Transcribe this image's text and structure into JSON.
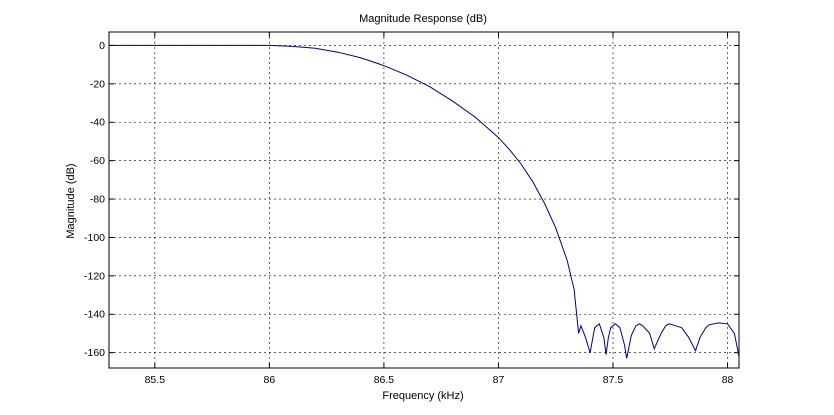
{
  "chart_data": {
    "type": "line",
    "title": "Magnitude Response (dB)",
    "xlabel": "Frequency (kHz)",
    "ylabel": "Magnitude (dB)",
    "xlim": [
      85.3,
      88.05
    ],
    "ylim": [
      -168,
      7
    ],
    "xticks": [
      85.5,
      86,
      86.5,
      87,
      87.5,
      88
    ],
    "xtick_labels": [
      "85.5",
      "86",
      "86.5",
      "87",
      "87.5",
      "88"
    ],
    "yticks": [
      0,
      -20,
      -40,
      -60,
      -80,
      -100,
      -120,
      -140,
      -160
    ],
    "ytick_labels": [
      "0",
      "-20",
      "-40",
      "-60",
      "-80",
      "-100",
      "-120",
      "-140",
      "-160"
    ],
    "grid": true,
    "grid_style": "dotted",
    "line_color": "#00008b",
    "series": [
      {
        "x": [
          85.3,
          85.6,
          85.9,
          86.0,
          86.1,
          86.2,
          86.3,
          86.4,
          86.5,
          86.6,
          86.7,
          86.8,
          86.9,
          87.0,
          87.05,
          87.1,
          87.15,
          87.2,
          87.25,
          87.3,
          87.33,
          87.35,
          87.36,
          87.38,
          87.4,
          87.42,
          87.44,
          87.46,
          87.47,
          87.48,
          87.49,
          87.51,
          87.53,
          87.55,
          87.56,
          87.58,
          87.6,
          87.615,
          87.63,
          87.66,
          87.68,
          87.71,
          87.73,
          87.745,
          87.76,
          87.8,
          87.83,
          87.86,
          87.88,
          87.905,
          87.92,
          87.96,
          88.0,
          88.03,
          88.05
        ],
        "y": [
          0,
          0,
          0,
          0,
          -0.5,
          -1.5,
          -3.5,
          -6.5,
          -10.5,
          -15.5,
          -21.5,
          -29,
          -37.5,
          -48,
          -54.5,
          -62,
          -71,
          -82,
          -95,
          -112,
          -127,
          -150,
          -146,
          -152,
          -160,
          -147,
          -145,
          -152,
          -161,
          -152,
          -147,
          -145,
          -147,
          -156,
          -163,
          -151,
          -146,
          -145,
          -146,
          -150,
          -158,
          -150,
          -146,
          -145,
          -145.5,
          -147,
          -152,
          -159,
          -152,
          -147,
          -145.5,
          -144.5,
          -145,
          -150,
          -162
        ]
      }
    ]
  }
}
